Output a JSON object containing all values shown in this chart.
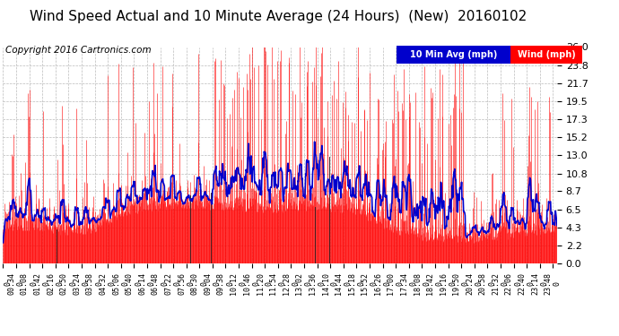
{
  "title": "Wind Speed Actual and 10 Minute Average (24 Hours)  (New)  20160102",
  "copyright": "Copyright 2016 Cartronics.com",
  "legend_avg_label": "10 Min Avg (mph)",
  "legend_wind_label": "Wind (mph)",
  "yticks": [
    0.0,
    2.2,
    4.3,
    6.5,
    8.7,
    10.8,
    13.0,
    15.2,
    17.3,
    19.5,
    21.7,
    23.8,
    26.0
  ],
  "ymin": 0.0,
  "ymax": 26.0,
  "background_color": "#ffffff",
  "plot_bg_color": "#ffffff",
  "grid_color": "#bbbbbb",
  "wind_color": "#ff0000",
  "avg_color": "#0000cc",
  "title_fontsize": 11,
  "copyright_fontsize": 7.5,
  "tick_fontsize": 8,
  "xtick_fontsize": 6,
  "num_points": 1440,
  "xtick_step_min": 34
}
